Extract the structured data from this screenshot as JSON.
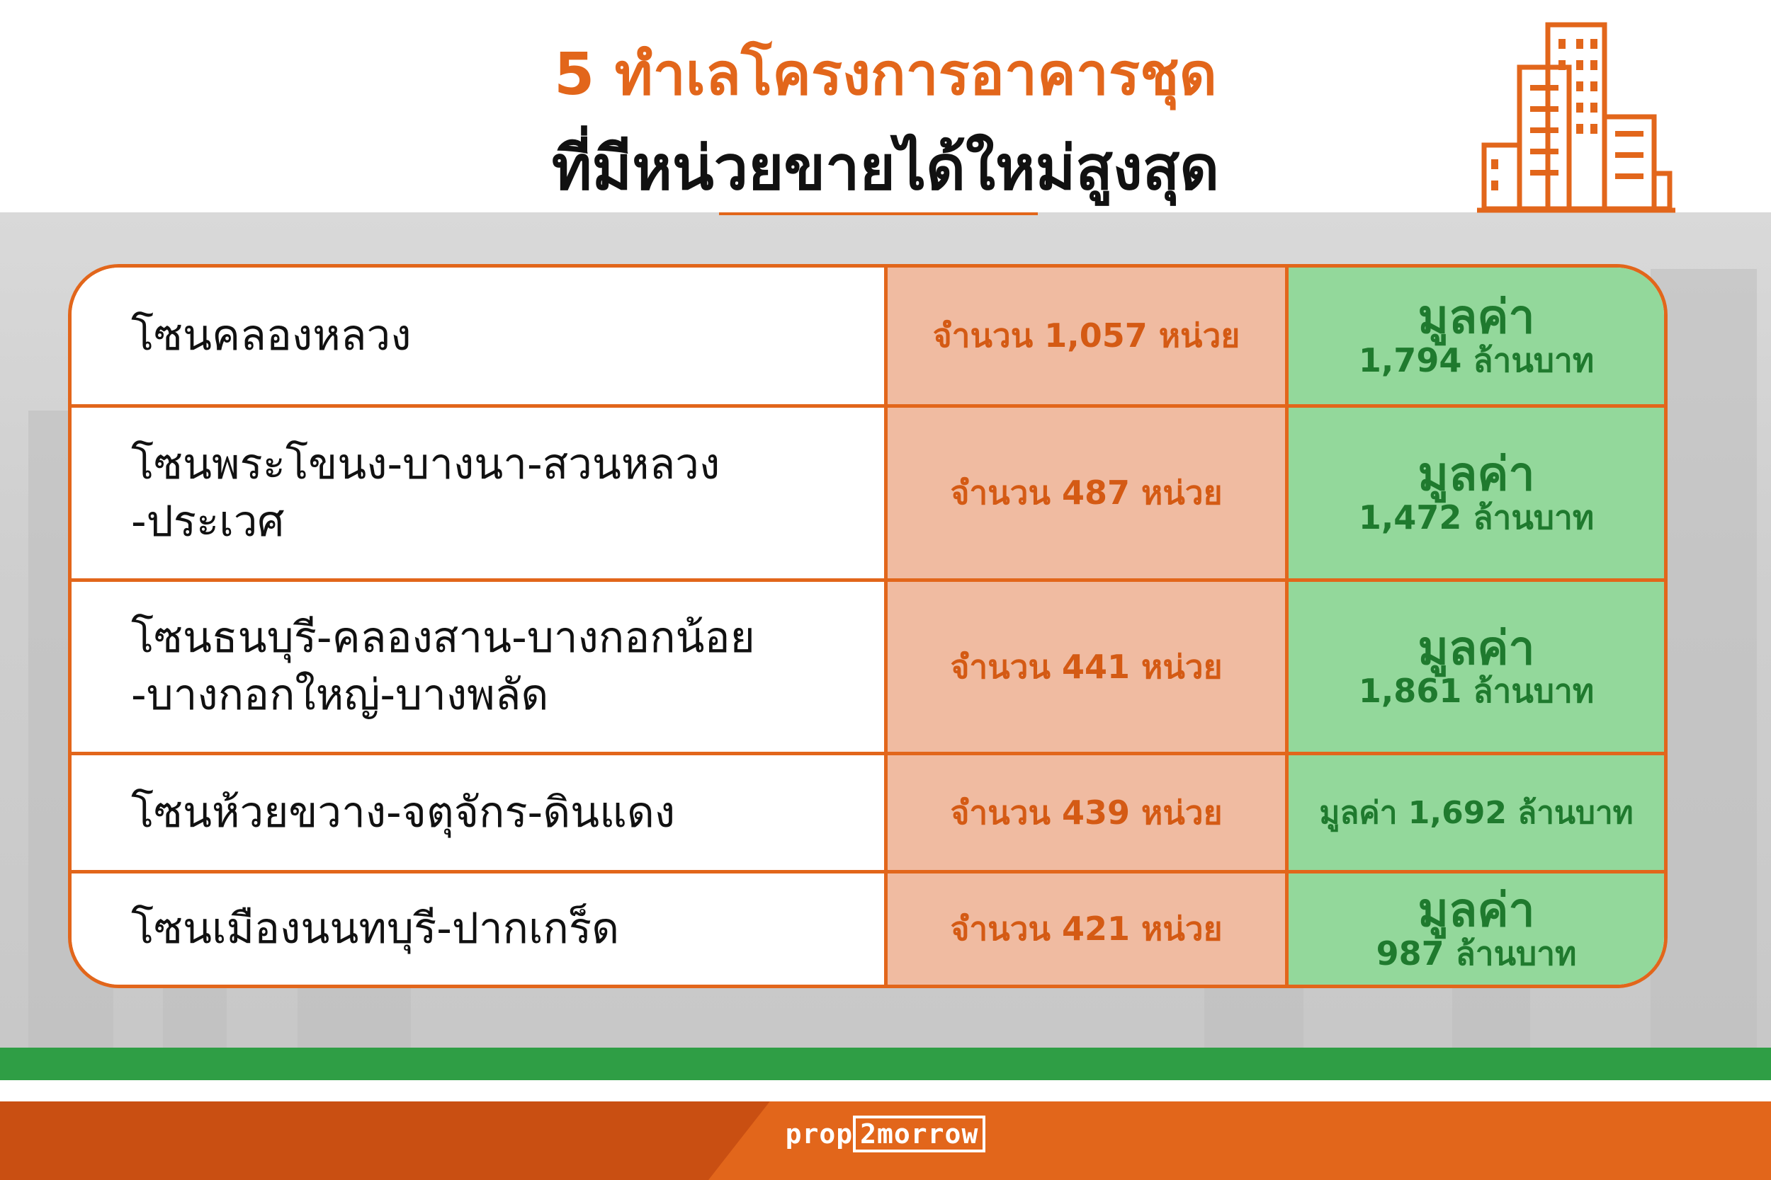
{
  "title": {
    "line1": "5 ทำเลโครงการอาคารชุด",
    "line2": "ที่มีหน่วยขายได้ใหม่สูงสุด"
  },
  "icons": {
    "header": "buildings-icon"
  },
  "colors": {
    "accent": "#e2661b",
    "units_bg": "#f0bba1",
    "value_bg": "#93d89b",
    "value_text": "#1f7a2e",
    "footer_green": "#2f9e45"
  },
  "rows": [
    {
      "zone": "โซนคลองหลวง",
      "units": "จำนวน 1,057 หน่วย",
      "value_label": "มูลค่า",
      "value_amount": "1,794 ล้านบาท"
    },
    {
      "zone": "โซนพระโขนง-บางนา-สวนหลวง\n-ประเวศ",
      "units": "จำนวน 487 หน่วย",
      "value_label": "มูลค่า",
      "value_amount": "1,472 ล้านบาท"
    },
    {
      "zone": " โซนธนบุรี-คลองสาน-บางกอกน้อย\n-บางกอกใหญ่-บางพลัด",
      "units": "จำนวน 441 หน่วย",
      "value_label": "มูลค่า",
      "value_amount": "1,861 ล้านบาท"
    },
    {
      "zone": "โซนห้วยขวาง-จตุจักร-ดินแดง",
      "units": "จำนวน 439 หน่วย",
      "value_inline": "มูลค่า 1,692 ล้านบาท"
    },
    {
      "zone": "โซนเมืองนนทบุรี-ปากเกร็ด",
      "units": "จำนวน 421 หน่วย",
      "value_label": "มูลค่า",
      "value_amount": "987 ล้านบาท"
    }
  ],
  "footer": {
    "logo_left": "prop",
    "logo_boxed": "2morrow"
  }
}
